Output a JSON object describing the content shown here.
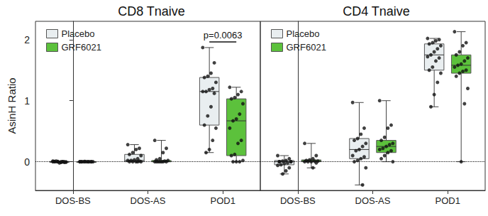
{
  "chart_data": [
    {
      "type": "boxplot",
      "title": "CD8 Tnaive",
      "ylabel": "AsinH Ratio",
      "categories": [
        "DOS-BS",
        "DOS-AS",
        "POD1"
      ],
      "ylim": [
        -0.47,
        2.3
      ],
      "yticks": [
        0,
        1,
        2
      ],
      "grid": false,
      "legend": "upper left",
      "hline": 0,
      "series": [
        {
          "name": "Placebo",
          "color": "#e9eef0",
          "boxes": [
            {
              "min": -0.02,
              "q1": -0.01,
              "median": 0,
              "q3": 0.005,
              "max": 0.01
            },
            {
              "min": 0,
              "q1": 0,
              "median": 0.02,
              "q3": 0.12,
              "max": 0.28
            },
            {
              "min": 0.15,
              "q1": 0.6,
              "median": 1.15,
              "q3": 1.38,
              "max": 1.87
            }
          ],
          "points": [
            [
              0.01,
              0,
              -0.01,
              0,
              0.005,
              -0.005,
              0,
              -0.02,
              0.01,
              0,
              -0.01,
              0,
              0.005,
              0,
              -0.005,
              0
            ],
            [
              0.28,
              0.22,
              0.2,
              0.15,
              0.12,
              0.1,
              0.05,
              0.03,
              0.02,
              0.02,
              0.01,
              0,
              0,
              0,
              0,
              0
            ],
            [
              1.87,
              1.62,
              1.45,
              1.4,
              1.38,
              1.3,
              1.2,
              1.18,
              1.15,
              1.15,
              1.12,
              0.9,
              0.75,
              0.6,
              0.55,
              0.35,
              0.2,
              0.15
            ]
          ]
        },
        {
          "name": "GRF6021",
          "color": "#5cc13c",
          "boxes": [
            {
              "min": 0,
              "q1": 0,
              "median": 0,
              "q3": 0,
              "max": 0.005
            },
            {
              "min": 0,
              "q1": 0,
              "median": 0,
              "q3": 0.02,
              "max": 0.35
            },
            {
              "min": 0,
              "q1": 0.1,
              "median": 0.67,
              "q3": 1.03,
              "max": 1.22
            }
          ],
          "points": [
            [
              0,
              0,
              0,
              0,
              0,
              0,
              0,
              0,
              0,
              0,
              0,
              0,
              0.005,
              0
            ],
            [
              0.35,
              0.22,
              0.15,
              0.05,
              0.03,
              0.02,
              0.01,
              0,
              0,
              0,
              0,
              0,
              0,
              0
            ],
            [
              1.22,
              1.15,
              1.1,
              1.05,
              1.03,
              0.95,
              0.78,
              0.7,
              0.67,
              0.55,
              0.35,
              0.3,
              0.12,
              0.1,
              0.02,
              0,
              0,
              0
            ]
          ]
        }
      ],
      "annotations": [
        {
          "text": "p=0.0063",
          "category": "POD1"
        }
      ]
    },
    {
      "type": "boxplot",
      "title": "CD4 Tnaive",
      "categories": [
        "DOS-BS",
        "DOS-AS",
        "POD1"
      ],
      "ylim": [
        -0.47,
        2.3
      ],
      "yticks": [
        0,
        1,
        2
      ],
      "grid": false,
      "legend": "upper left",
      "hline": 0,
      "tick_labels": "x",
      "series": [
        {
          "name": "Placebo",
          "color": "#e9eef0",
          "boxes": [
            {
              "min": -0.2,
              "q1": -0.05,
              "median": 0,
              "q3": 0.02,
              "max": 0.1
            },
            {
              "min": -0.38,
              "q1": 0.05,
              "median": 0.2,
              "q3": 0.38,
              "max": 0.97
            },
            {
              "min": 0.9,
              "q1": 1.5,
              "median": 1.75,
              "q3": 1.93,
              "max": 2.02
            }
          ],
          "points": [
            [
              0.1,
              0.05,
              0.02,
              0.01,
              0,
              0,
              -0.02,
              -0.03,
              -0.05,
              -0.06,
              -0.1,
              -0.15,
              -0.2,
              0,
              0
            ],
            [
              0.97,
              0.55,
              0.45,
              0.38,
              0.35,
              0.3,
              0.25,
              0.2,
              0.18,
              0.1,
              0.08,
              0.05,
              0.02,
              0,
              -0.1,
              -0.38
            ],
            [
              2.02,
              2.0,
              1.98,
              1.95,
              1.93,
              1.9,
              1.85,
              1.8,
              1.75,
              1.72,
              1.7,
              1.65,
              1.55,
              1.5,
              1.45,
              1.3,
              1.1,
              0.9
            ]
          ]
        },
        {
          "name": "GRF6021",
          "color": "#5cc13c",
          "boxes": [
            {
              "min": -0.1,
              "q1": 0,
              "median": 0.01,
              "q3": 0.03,
              "max": 0.3
            },
            {
              "min": 0,
              "q1": 0.15,
              "median": 0.25,
              "q3": 0.35,
              "max": 1.0
            },
            {
              "min": 0,
              "q1": 1.45,
              "median": 1.58,
              "q3": 1.75,
              "max": 2.13
            }
          ],
          "points": [
            [
              0.3,
              0.1,
              0.05,
              0.03,
              0.02,
              0.01,
              0.01,
              0,
              0,
              0,
              -0.02,
              -0.1
            ],
            [
              1.0,
              0.6,
              0.55,
              0.4,
              0.35,
              0.3,
              0.28,
              0.25,
              0.22,
              0.2,
              0.18,
              0.15,
              0.1,
              0.05,
              0
            ],
            [
              2.13,
              1.95,
              1.9,
              1.8,
              1.75,
              1.7,
              1.65,
              1.6,
              1.58,
              1.55,
              1.5,
              1.48,
              1.45,
              1.4,
              1.2,
              0.95,
              0
            ]
          ]
        }
      ]
    }
  ]
}
